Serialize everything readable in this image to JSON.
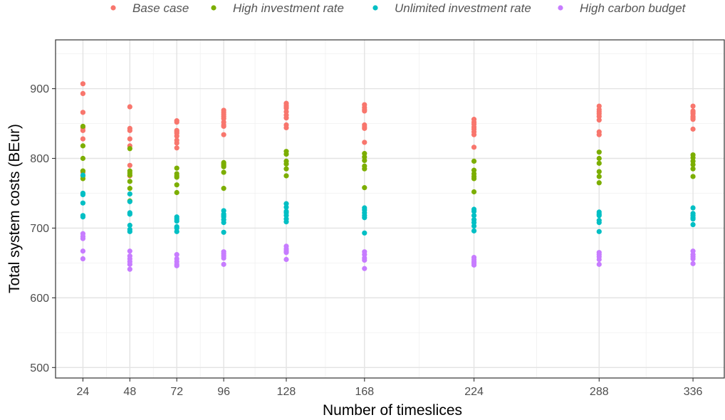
{
  "chart_data": {
    "type": "scatter",
    "xlabel": "Number of timeslices",
    "ylabel": "Total system costs (BEur)",
    "x_ticks": [
      24,
      48,
      72,
      96,
      128,
      168,
      224,
      288,
      336
    ],
    "y_ticks": [
      500,
      600,
      700,
      800,
      900
    ],
    "xlim": [
      10,
      352
    ],
    "ylim": [
      485,
      970
    ],
    "grid": true,
    "legend_position": "top",
    "series": [
      {
        "name": "Base case",
        "color": "#F8766D",
        "x": [
          24,
          24,
          24,
          24,
          24,
          24,
          24,
          48,
          48,
          48,
          48,
          48,
          48,
          48,
          72,
          72,
          72,
          72,
          72,
          72,
          72,
          72,
          72,
          96,
          96,
          96,
          96,
          96,
          96,
          96,
          96,
          96,
          128,
          128,
          128,
          128,
          128,
          128,
          128,
          128,
          128,
          168,
          168,
          168,
          168,
          168,
          168,
          168,
          168,
          224,
          224,
          224,
          224,
          224,
          224,
          224,
          224,
          288,
          288,
          288,
          288,
          288,
          288,
          288,
          288,
          336,
          336,
          336,
          336,
          336,
          336,
          336,
          336
        ],
        "y": [
          907,
          893,
          866,
          844,
          840,
          828,
          780,
          874,
          843,
          840,
          828,
          818,
          790,
          775,
          854,
          840,
          836,
          832,
          826,
          822,
          815,
          852,
          838,
          869,
          866,
          863,
          857,
          852,
          846,
          834,
          860,
          848,
          879,
          876,
          872,
          867,
          858,
          848,
          844,
          874,
          862,
          877,
          873,
          868,
          848,
          843,
          823,
          870,
          845,
          856,
          852,
          849,
          842,
          838,
          834,
          816,
          845,
          875,
          867,
          864,
          855,
          838,
          834,
          860,
          870,
          875,
          868,
          864,
          860,
          856,
          842,
          866,
          858
        ]
      },
      {
        "name": "High investment rate",
        "color": "#7CAE00",
        "x": [
          24,
          24,
          24,
          24,
          24,
          24,
          48,
          48,
          48,
          48,
          48,
          48,
          48,
          72,
          72,
          72,
          72,
          72,
          72,
          96,
          96,
          96,
          96,
          96,
          96,
          128,
          128,
          128,
          128,
          128,
          128,
          168,
          168,
          168,
          168,
          168,
          168,
          224,
          224,
          224,
          224,
          224,
          224,
          288,
          288,
          288,
          288,
          288,
          288,
          336,
          336,
          336,
          336,
          336,
          336
        ],
        "y": [
          846,
          818,
          800,
          782,
          775,
          771,
          814,
          782,
          776,
          767,
          757,
          739,
          779,
          786,
          778,
          775,
          762,
          751,
          773,
          794,
          792,
          788,
          780,
          757,
          790,
          810,
          806,
          796,
          792,
          785,
          775,
          807,
          797,
          789,
          785,
          758,
          802,
          796,
          783,
          774,
          771,
          752,
          778,
          809,
          800,
          793,
          781,
          774,
          765,
          805,
          801,
          796,
          791,
          785,
          774
        ]
      },
      {
        "name": "Unlimited investment rate",
        "color": "#00BFC4",
        "x": [
          24,
          24,
          24,
          24,
          24,
          24,
          48,
          48,
          48,
          48,
          48,
          48,
          48,
          72,
          72,
          72,
          72,
          72,
          72,
          96,
          96,
          96,
          96,
          96,
          96,
          96,
          128,
          128,
          128,
          128,
          128,
          128,
          128,
          168,
          168,
          168,
          168,
          168,
          168,
          224,
          224,
          224,
          224,
          224,
          224,
          224,
          288,
          288,
          288,
          288,
          288,
          288,
          336,
          336,
          336,
          336,
          336,
          336
        ],
        "y": [
          776,
          750,
          748,
          736,
          718,
          716,
          749,
          738,
          722,
          720,
          704,
          698,
          695,
          716,
          713,
          710,
          702,
          700,
          695,
          725,
          720,
          716,
          712,
          708,
          694,
          718,
          735,
          730,
          724,
          718,
          713,
          709,
          722,
          729,
          726,
          722,
          718,
          715,
          693,
          727,
          724,
          718,
          712,
          708,
          703,
          696,
          723,
          718,
          711,
          708,
          695,
          720,
          729,
          721,
          718,
          715,
          713,
          705
        ]
      },
      {
        "name": "High carbon budget",
        "color": "#C77CFF",
        "x": [
          24,
          24,
          24,
          24,
          24,
          48,
          48,
          48,
          48,
          48,
          48,
          72,
          72,
          72,
          72,
          72,
          96,
          96,
          96,
          96,
          96,
          128,
          128,
          128,
          128,
          128,
          168,
          168,
          168,
          168,
          168,
          224,
          224,
          224,
          224,
          224,
          288,
          288,
          288,
          288,
          288,
          336,
          336,
          336,
          336,
          336
        ],
        "y": [
          692,
          688,
          685,
          667,
          656,
          667,
          660,
          656,
          652,
          648,
          641,
          662,
          656,
          652,
          648,
          646,
          666,
          663,
          660,
          657,
          648,
          674,
          670,
          667,
          665,
          655,
          666,
          662,
          657,
          654,
          642,
          658,
          655,
          652,
          650,
          647,
          665,
          662,
          659,
          655,
          648,
          667,
          662,
          659,
          656,
          649
        ]
      }
    ]
  }
}
